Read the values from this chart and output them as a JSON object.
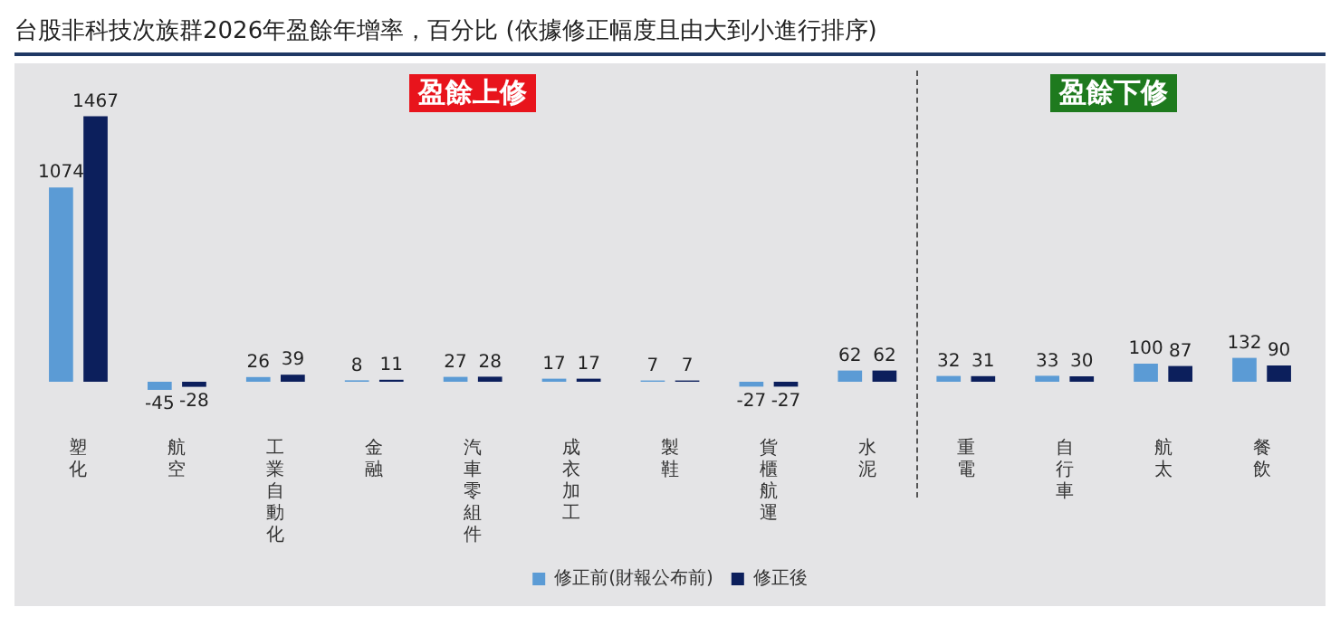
{
  "chart_data": {
    "type": "bar",
    "title": "台股非科技次族群2026年盈餘年增率，百分比 (依據修正幅度且由大到小進行排序)",
    "categories": [
      "塑化",
      "航空",
      "工業自動化",
      "金融",
      "汽車零組件",
      "成衣加工",
      "製鞋",
      "貨櫃航運",
      "水泥",
      "重電",
      "自行車",
      "航太",
      "餐飲"
    ],
    "series": [
      {
        "name": "修正前(財報公布前)",
        "color": "#5b9bd5",
        "values": [
          1074,
          -45,
          26,
          8,
          27,
          17,
          7,
          -27,
          62,
          32,
          33,
          100,
          132
        ]
      },
      {
        "name": "修正後",
        "color": "#0c1f5c",
        "values": [
          1467,
          -28,
          39,
          11,
          28,
          17,
          7,
          -27,
          62,
          31,
          30,
          87,
          90
        ]
      }
    ],
    "annotations": [
      "盈餘上修",
      "盈餘下修"
    ],
    "data_labels": true,
    "legend": "bottom"
  }
}
